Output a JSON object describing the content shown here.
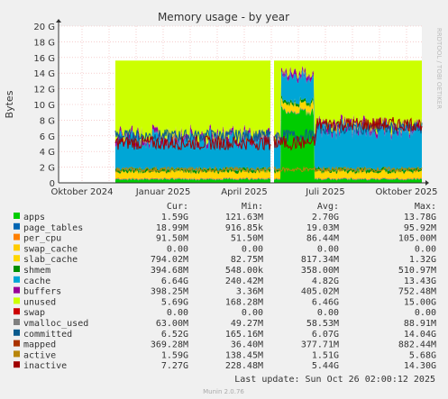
{
  "chart_data": {
    "type": "area",
    "title": "Memory usage - by year",
    "ylabel": "Bytes",
    "watermark": "RRDTOOL / TOBI OETIKER",
    "ylim": [
      0,
      20
    ],
    "y_unit": "G",
    "y_ticks": [
      "0",
      "2 G",
      "4 G",
      "6 G",
      "8 G",
      "10 G",
      "12 G",
      "14 G",
      "16 G",
      "18 G",
      "20 G"
    ],
    "x_ticks": [
      "Oktober 2024",
      "Januar 2025",
      "April 2025",
      "Juli 2025",
      "Oktober 2025"
    ],
    "grid": true,
    "legend_header": [
      "Cur:",
      "Min:",
      "Avg:",
      "Max:"
    ],
    "series": [
      {
        "name": "apps",
        "color": "#00cc00",
        "cur": "1.59G",
        "min": "121.63M",
        "avg": "2.70G",
        "max": "13.78G"
      },
      {
        "name": "page_tables",
        "color": "#0066b3",
        "cur": "18.99M",
        "min": "916.85k",
        "avg": "19.03M",
        "max": "95.92M"
      },
      {
        "name": "per_cpu",
        "color": "#ff8000",
        "cur": "91.50M",
        "min": "51.50M",
        "avg": "86.44M",
        "max": "105.00M"
      },
      {
        "name": "swap_cache",
        "color": "#ffcc00",
        "cur": "0.00",
        "min": "0.00",
        "avg": "0.00",
        "max": "0.00"
      },
      {
        "name": "slab_cache",
        "color": "#ffd700",
        "cur": "794.02M",
        "min": "82.75M",
        "avg": "817.34M",
        "max": "1.32G"
      },
      {
        "name": "shmem",
        "color": "#008f00",
        "cur": "394.68M",
        "min": "548.00k",
        "avg": "358.00M",
        "max": "510.97M"
      },
      {
        "name": "cache",
        "color": "#00a6d6",
        "cur": "6.64G",
        "min": "240.42M",
        "avg": "4.82G",
        "max": "13.43G"
      },
      {
        "name": "buffers",
        "color": "#990099",
        "cur": "398.25M",
        "min": "3.36M",
        "avg": "405.02M",
        "max": "752.48M"
      },
      {
        "name": "unused",
        "color": "#ccff00",
        "cur": "5.69G",
        "min": "168.28M",
        "avg": "6.46G",
        "max": "15.00G"
      },
      {
        "name": "swap",
        "color": "#cc0000",
        "cur": "0.00",
        "min": "0.00",
        "avg": "0.00",
        "max": "0.00"
      },
      {
        "name": "vmalloc_used",
        "color": "#808080",
        "cur": "63.00M",
        "min": "49.27M",
        "avg": "58.53M",
        "max": "88.91M"
      },
      {
        "name": "committed",
        "color": "#0a5a8c",
        "cur": "6.52G",
        "min": "165.16M",
        "avg": "6.07G",
        "max": "14.04G"
      },
      {
        "name": "mapped",
        "color": "#aa3300",
        "cur": "369.28M",
        "min": "36.40M",
        "avg": "377.71M",
        "max": "882.44M"
      },
      {
        "name": "active",
        "color": "#b8860b",
        "cur": "1.59G",
        "min": "138.45M",
        "avg": "1.51G",
        "max": "5.68G"
      },
      {
        "name": "inactive",
        "color": "#a00000",
        "cur": "7.27G",
        "min": "228.48M",
        "avg": "5.44G",
        "max": "14.30G"
      }
    ],
    "last_update": "Last update: Sun Oct 26 02:00:12 2025",
    "footer": "Munin 2.0.76"
  }
}
